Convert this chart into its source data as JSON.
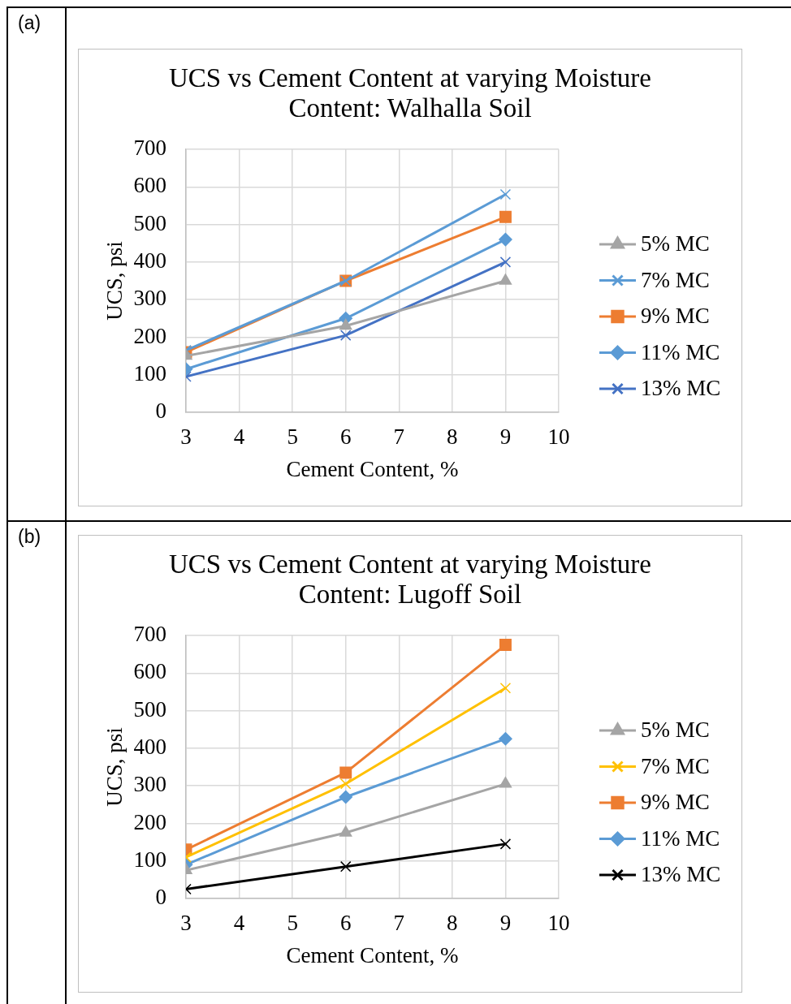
{
  "chart_data": [
    {
      "type": "line",
      "title": "UCS vs Cement Content at varying Moisture Content: Walhalla Soil",
      "xlabel": "Cement Content, %",
      "ylabel": "UCS, psi",
      "annotations": [
        "(a)"
      ],
      "x": [
        3,
        6,
        9
      ],
      "xlim": [
        3,
        10
      ],
      "xticks": [
        3,
        4,
        5,
        6,
        7,
        8,
        9,
        10
      ],
      "ylim": [
        0,
        700
      ],
      "yticks": [
        0,
        100,
        200,
        300,
        400,
        500,
        600,
        700
      ],
      "grid": true,
      "legend": "right",
      "series": [
        {
          "name": "5% MC",
          "color": "#a5a5a5",
          "marker": "triangle",
          "values": [
            150,
            230,
            350
          ]
        },
        {
          "name": "7% MC",
          "color": "#5b9bd5",
          "marker": "cross",
          "values": [
            165,
            350,
            580
          ]
        },
        {
          "name": "9% MC",
          "color": "#ed7d31",
          "marker": "square",
          "values": [
            160,
            350,
            520
          ]
        },
        {
          "name": "11% MC",
          "color": "#5b9bd5",
          "marker": "diamond",
          "values": [
            115,
            250,
            460
          ]
        },
        {
          "name": "13% MC",
          "color": "#4472c4",
          "marker": "cross",
          "values": [
            95,
            205,
            400
          ]
        }
      ]
    },
    {
      "type": "line",
      "title": "UCS vs Cement Content at varying Moisture Content: Lugoff Soil",
      "xlabel": "Cement Content, %",
      "ylabel": "UCS, psi",
      "annotations": [
        "(b)"
      ],
      "x": [
        3,
        6,
        9
      ],
      "xlim": [
        3,
        10
      ],
      "xticks": [
        3,
        4,
        5,
        6,
        7,
        8,
        9,
        10
      ],
      "ylim": [
        0,
        700
      ],
      "yticks": [
        0,
        100,
        200,
        300,
        400,
        500,
        600,
        700
      ],
      "grid": true,
      "legend": "right",
      "series": [
        {
          "name": "5% MC",
          "color": "#a5a5a5",
          "marker": "triangle",
          "values": [
            75,
            175,
            305
          ]
        },
        {
          "name": "7% MC",
          "color": "#ffc000",
          "marker": "cross",
          "values": [
            110,
            305,
            560
          ]
        },
        {
          "name": "9% MC",
          "color": "#ed7d31",
          "marker": "square",
          "values": [
            130,
            335,
            675
          ]
        },
        {
          "name": "11% MC",
          "color": "#5b9bd5",
          "marker": "diamond",
          "values": [
            90,
            270,
            425
          ]
        },
        {
          "name": "13% MC",
          "color": "#000000",
          "marker": "cross",
          "values": [
            25,
            85,
            145
          ]
        }
      ]
    }
  ]
}
